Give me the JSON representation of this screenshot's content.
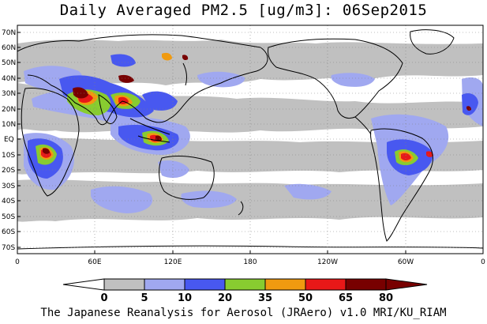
{
  "title": "Daily Averaged PM2.5 [ug/m3]: 06Sep2015",
  "footer": "The Japanese Reanalysis for Aerosol (JRAero) v1.0 MRI/KU_RIAM",
  "map": {
    "lat_labels": [
      "70N",
      "60N",
      "50N",
      "40N",
      "30N",
      "20N",
      "10N",
      "EQ",
      "10S",
      "20S",
      "30S",
      "40S",
      "50S",
      "60S",
      "70S"
    ],
    "lon_labels": [
      "0",
      "60E",
      "120E",
      "180",
      "120W",
      "60W",
      "0"
    ]
  },
  "colorbar": {
    "levels": [
      "0",
      "5",
      "10",
      "20",
      "35",
      "50",
      "65",
      "80"
    ],
    "colors": [
      "#ffffff",
      "#c0c0c0",
      "#a0a8f0",
      "#4858f0",
      "#88cc30",
      "#f09a10",
      "#e81818",
      "#780000"
    ]
  }
}
